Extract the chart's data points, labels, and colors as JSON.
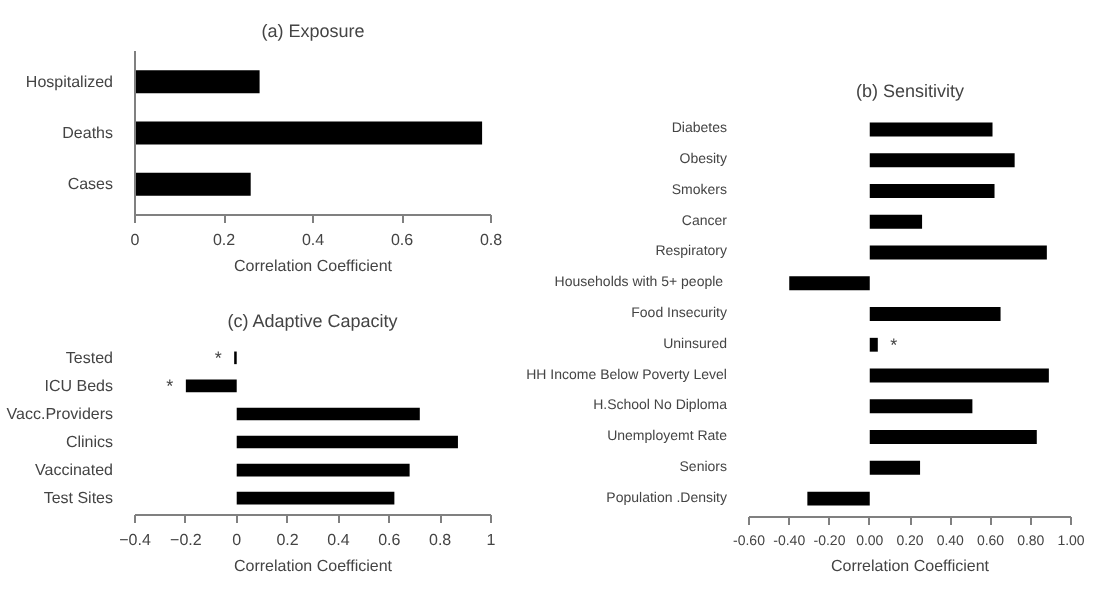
{
  "chart_data": [
    {
      "type": "bar",
      "orientation": "horizontal",
      "title": "(a) Exposure",
      "xlabel": "Correlation Coefficient",
      "categories": [
        "Hospitalized",
        "Deaths",
        "Cases"
      ],
      "values": [
        0.28,
        0.78,
        0.26
      ],
      "color": "#000000",
      "xlim": [
        0,
        0.8
      ],
      "xticks": [
        0,
        0.2,
        0.4,
        0.6,
        0.8
      ],
      "grid": false,
      "legend": false
    },
    {
      "type": "bar",
      "orientation": "horizontal",
      "title": "(b) Sensitivity",
      "xlabel": "Correlation Coefficient",
      "categories": [
        "Diabetes",
        "Obesity",
        "Smokers",
        "Cancer",
        "Respiratory",
        "Households with  5+ people",
        "Food Insecurity",
        "Uninsured",
        "HH Income Below Poverty Level",
        "H.School No Diploma",
        "Unemployemt Rate",
        "Seniors",
        "Population .Density"
      ],
      "values": [
        0.61,
        0.72,
        0.62,
        0.26,
        0.88,
        -0.4,
        0.65,
        0.04,
        0.89,
        0.51,
        0.83,
        0.25,
        -0.31
      ],
      "color": "#000000",
      "xlim": [
        -0.6,
        1.0
      ],
      "xticks": [
        {
          "value": -0.6,
          "label": "-0.60"
        },
        {
          "value": -0.4,
          "label": "-0.40"
        },
        {
          "value": -0.2,
          "label": "-0.20"
        },
        {
          "value": 0,
          "label": "0.00"
        },
        {
          "value": 0.2,
          "label": "0.20"
        },
        {
          "value": 0.4,
          "label": "0.40"
        },
        {
          "value": 0.6,
          "label": "0.60"
        },
        {
          "value": 0.8,
          "label": "0.80"
        },
        {
          "value": 1.0,
          "label": "1.00"
        }
      ],
      "grid": false,
      "legend": false,
      "annotations": [
        {
          "text": "*",
          "x": 0.04,
          "y": "Uninsured"
        }
      ]
    },
    {
      "type": "bar",
      "orientation": "horizontal",
      "title": "(c) Adaptive Capacity",
      "xlabel": "Correlation Coefficient",
      "categories": [
        "Tested",
        "ICU Beds",
        "Vacc.Providers",
        "Clinics",
        "Vaccinated",
        "Test Sites"
      ],
      "values": [
        -0.01,
        -0.2,
        0.72,
        0.87,
        0.68,
        0.62
      ],
      "color": "#000000",
      "xlim": [
        -0.4,
        1
      ],
      "xticks": [
        -0.4,
        -0.2,
        0,
        0.2,
        0.4,
        0.6,
        0.8,
        1
      ],
      "grid": false,
      "legend": false,
      "annotations": [
        {
          "text": "*",
          "x": -0.01,
          "y": "Tested"
        },
        {
          "text": "*",
          "x": -0.2,
          "y": "ICU Beds"
        }
      ]
    }
  ]
}
